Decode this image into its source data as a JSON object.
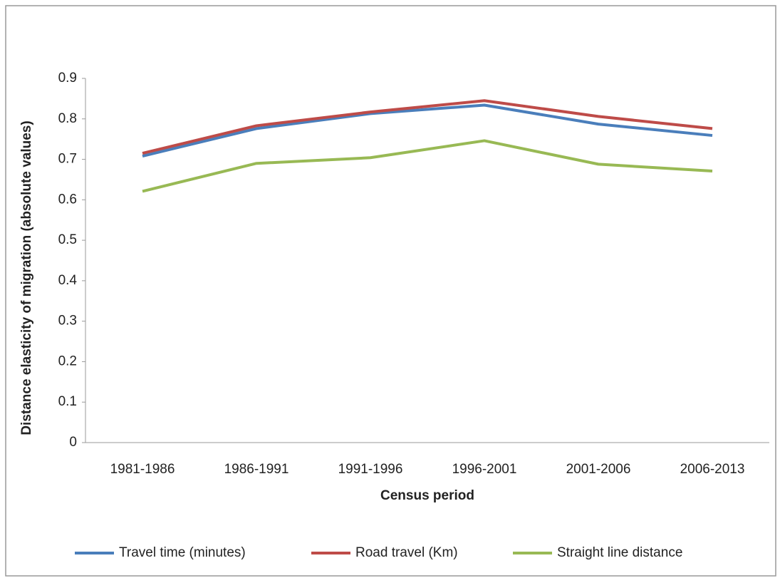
{
  "chart_data": {
    "type": "line",
    "x_label": "Census period",
    "y_label": "Distance elasticity of migration (absolute values)",
    "categories": [
      "1981-1986",
      "1986-1991",
      "1991-1996",
      "1996-2001",
      "2001-2006",
      "2006-2013"
    ],
    "series": [
      {
        "name": "Travel time (minutes)",
        "color": "#4a7ebb",
        "values": [
          0.708,
          0.776,
          0.813,
          0.834,
          0.787,
          0.759
        ]
      },
      {
        "name": "Road travel (Km)",
        "color": "#be4b48",
        "values": [
          0.715,
          0.783,
          0.817,
          0.845,
          0.806,
          0.776
        ]
      },
      {
        "name": "Straight line distance",
        "color": "#98b954",
        "values": [
          0.621,
          0.69,
          0.704,
          0.746,
          0.688,
          0.671
        ]
      }
    ],
    "ylim": [
      0,
      0.9
    ],
    "yticks": [
      0,
      0.1,
      0.2,
      0.3,
      0.4,
      0.5,
      0.6,
      0.7,
      0.8,
      0.9
    ],
    "grid": false,
    "legend": "bottom"
  }
}
